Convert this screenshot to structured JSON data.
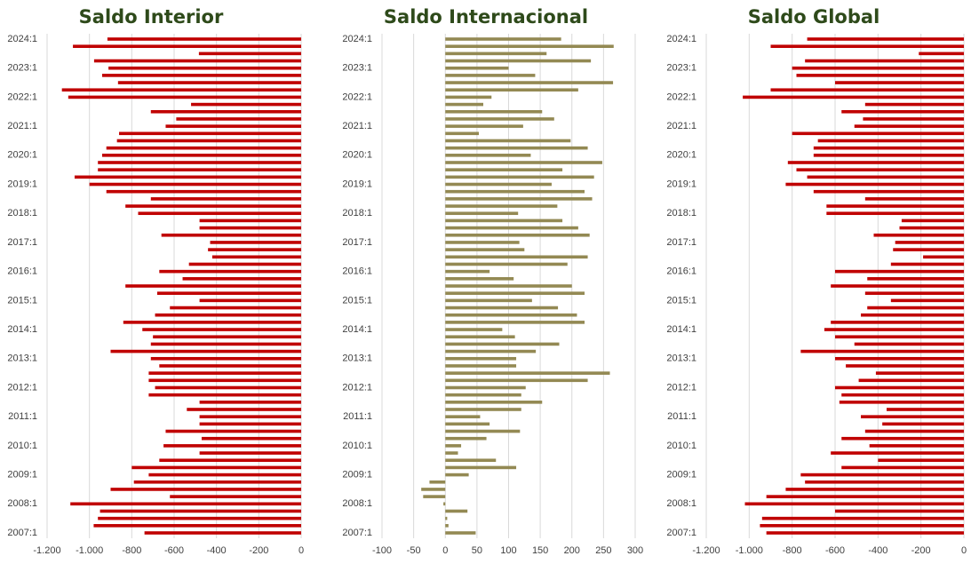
{
  "chart_data": [
    {
      "type": "bar",
      "orientation": "horizontal",
      "title": "Saldo Interior",
      "color": "#c00000",
      "grid": true,
      "categories": [
        "2024:1",
        null,
        null,
        null,
        "2023:1",
        null,
        null,
        null,
        "2022:1",
        null,
        null,
        null,
        "2021:1",
        null,
        null,
        null,
        "2020:1",
        null,
        null,
        null,
        "2019:1",
        null,
        null,
        null,
        "2018:1",
        null,
        null,
        null,
        "2017:1",
        null,
        null,
        null,
        "2016:1",
        null,
        null,
        null,
        "2015:1",
        null,
        null,
        null,
        "2014:1",
        null,
        null,
        null,
        "2013:1",
        null,
        null,
        null,
        "2012:1",
        null,
        null,
        null,
        "2011:1",
        null,
        null,
        null,
        "2010:1",
        null,
        null,
        null,
        "2009:1",
        null,
        null,
        null,
        "2008:1",
        null,
        null,
        null,
        "2007:1"
      ],
      "values": [
        -915,
        -1078,
        -483,
        -978,
        -910,
        -940,
        -865,
        -1130,
        -1100,
        -520,
        -710,
        -590,
        -640,
        -860,
        -870,
        -920,
        -940,
        -960,
        -960,
        -1070,
        -1000,
        -920,
        -710,
        -830,
        -770,
        -480,
        -480,
        -660,
        -430,
        -440,
        -420,
        -530,
        -670,
        -560,
        -830,
        -680,
        -480,
        -620,
        -690,
        -840,
        -750,
        -700,
        -710,
        -900,
        -710,
        -670,
        -720,
        -720,
        -690,
        -720,
        -480,
        -540,
        -480,
        -480,
        -640,
        -470,
        -650,
        -480,
        -670,
        -800,
        -720,
        -790,
        -900,
        -620,
        -1090,
        -950,
        -960,
        -980,
        -740
      ],
      "xlim": [
        -1200,
        0
      ],
      "xticks": [
        {
          "value": -1200,
          "label": "-1.200"
        },
        {
          "value": -1000,
          "label": "-1.000"
        },
        -800,
        -600,
        -400,
        -200,
        0
      ]
    },
    {
      "type": "bar",
      "orientation": "horizontal",
      "title": "Saldo Internacional",
      "color": "#938953",
      "grid": true,
      "categories": [
        "2024:1",
        null,
        null,
        null,
        "2023:1",
        null,
        null,
        null,
        "2022:1",
        null,
        null,
        null,
        "2021:1",
        null,
        null,
        null,
        "2020:1",
        null,
        null,
        null,
        "2019:1",
        null,
        null,
        null,
        "2018:1",
        null,
        null,
        null,
        "2017:1",
        null,
        null,
        null,
        "2016:1",
        null,
        null,
        null,
        "2015:1",
        null,
        null,
        null,
        "2014:1",
        null,
        null,
        null,
        "2013:1",
        null,
        null,
        null,
        "2012:1",
        null,
        null,
        null,
        "2011:1",
        null,
        null,
        null,
        "2010:1",
        null,
        null,
        null,
        "2009:1",
        null,
        null,
        null,
        "2008:1",
        null,
        null,
        null,
        "2007:1"
      ],
      "values": [
        183,
        266,
        160,
        230,
        100,
        142,
        265,
        210,
        73,
        60,
        153,
        172,
        123,
        53,
        198,
        225,
        135,
        248,
        185,
        235,
        168,
        220,
        232,
        177,
        115,
        185,
        210,
        228,
        117,
        125,
        225,
        193,
        70,
        108,
        200,
        220,
        137,
        178,
        208,
        220,
        90,
        110,
        180,
        143,
        112,
        112,
        260,
        225,
        127,
        120,
        153,
        120,
        55,
        70,
        118,
        65,
        25,
        20,
        80,
        112,
        37,
        -25,
        -38,
        -35,
        -3,
        35,
        3,
        5,
        48
      ],
      "xlim": [
        -100,
        300
      ],
      "xticks": [
        -100,
        -50,
        0,
        50,
        100,
        150,
        200,
        250,
        300
      ]
    },
    {
      "type": "bar",
      "orientation": "horizontal",
      "title": "Saldo Global",
      "color": "#c00000",
      "grid": true,
      "categories": [
        "2024:1",
        null,
        null,
        null,
        "2023:1",
        null,
        null,
        null,
        "2022:1",
        null,
        null,
        null,
        "2021:1",
        null,
        null,
        null,
        "2020:1",
        null,
        null,
        null,
        "2019:1",
        null,
        null,
        null,
        "2018:1",
        null,
        null,
        null,
        "2017:1",
        null,
        null,
        null,
        "2016:1",
        null,
        null,
        null,
        "2015:1",
        null,
        null,
        null,
        "2014:1",
        null,
        null,
        null,
        "2013:1",
        null,
        null,
        null,
        "2012:1",
        null,
        null,
        null,
        "2011:1",
        null,
        null,
        null,
        "2010:1",
        null,
        null,
        null,
        "2009:1",
        null,
        null,
        null,
        "2008:1",
        null,
        null,
        null,
        "2007:1"
      ],
      "values": [
        -730,
        -900,
        -210,
        -740,
        -800,
        -780,
        -600,
        -900,
        -1030,
        -460,
        -570,
        -470,
        -510,
        -800,
        -680,
        -700,
        -700,
        -820,
        -780,
        -730,
        -830,
        -700,
        -460,
        -640,
        -640,
        -290,
        -300,
        -420,
        -320,
        -330,
        -190,
        -340,
        -600,
        -450,
        -620,
        -460,
        -340,
        -450,
        -480,
        -620,
        -650,
        -600,
        -510,
        -760,
        -600,
        -550,
        -410,
        -490,
        -600,
        -570,
        -580,
        -360,
        -480,
        -380,
        -460,
        -570,
        -440,
        -620,
        -400,
        -570,
        -760,
        -740,
        -830,
        -920,
        -1020,
        -600,
        -940,
        -950,
        -920
      ],
      "xlim": [
        -1200,
        0
      ],
      "xticks": [
        {
          "value": -1200,
          "label": "-1.200"
        },
        {
          "value": -1000,
          "label": "-1.000"
        },
        -800,
        -600,
        -400,
        -200,
        0
      ]
    }
  ]
}
